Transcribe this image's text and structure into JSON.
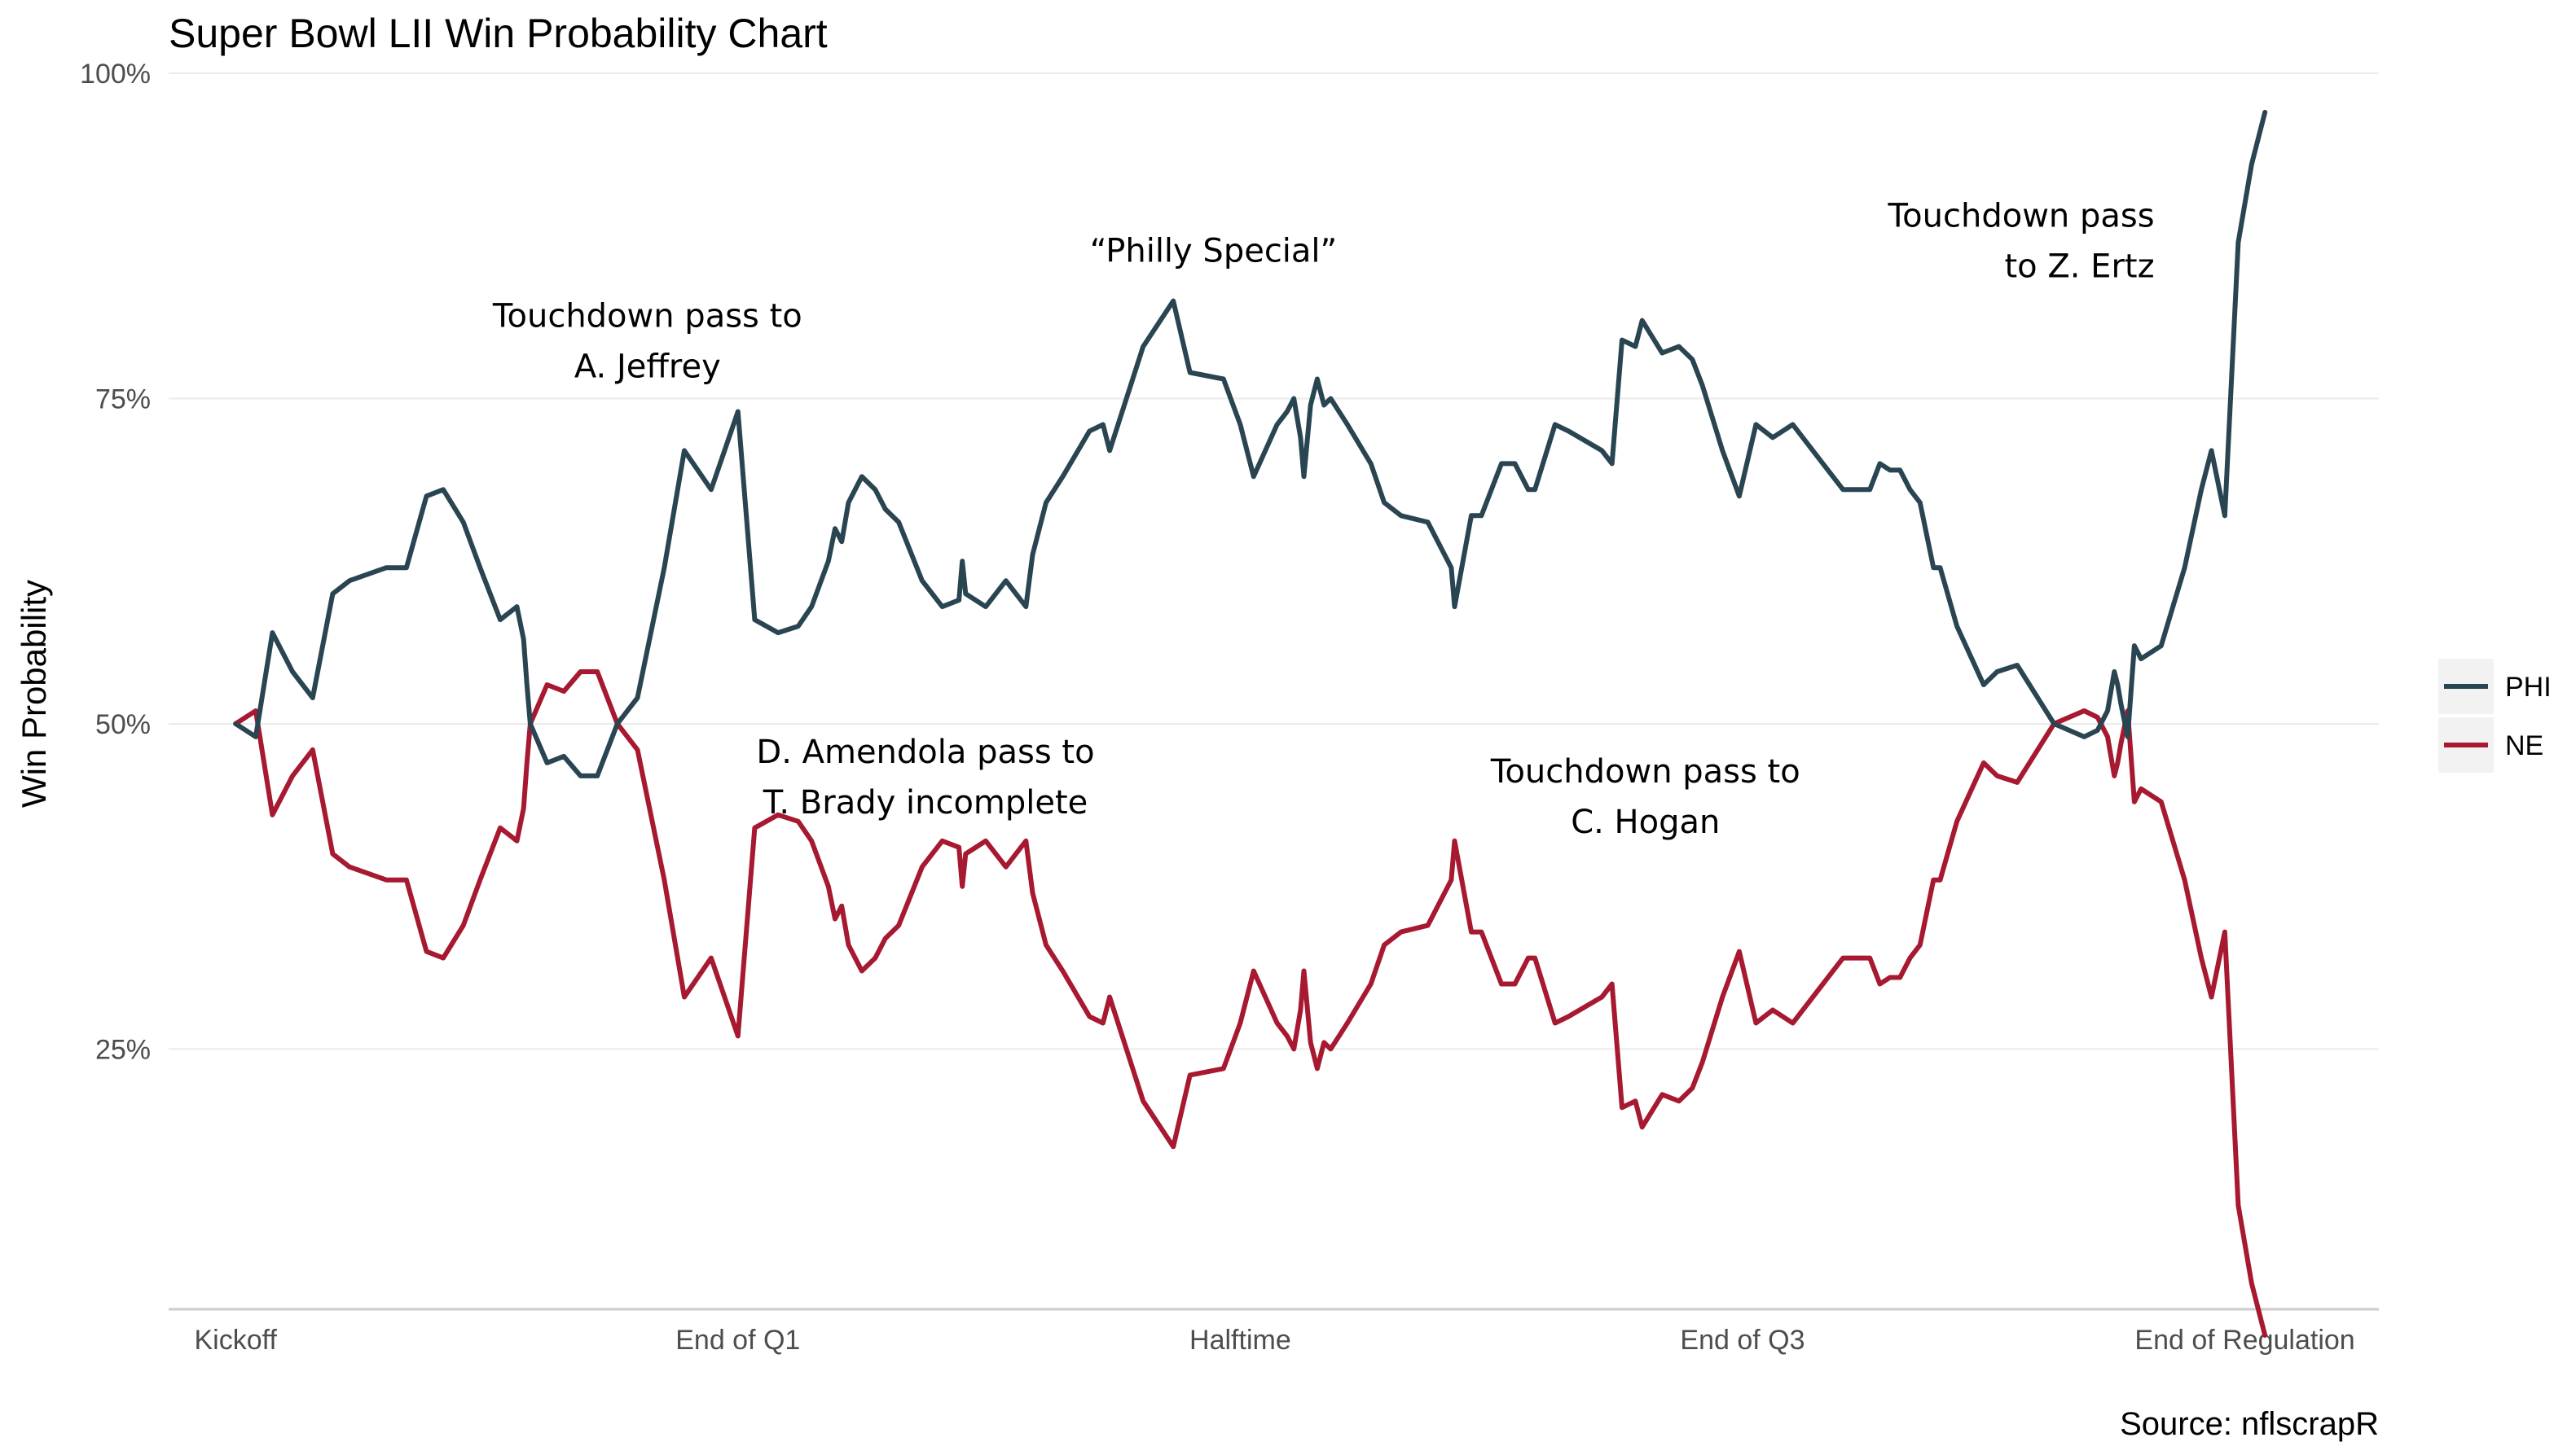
{
  "chart_data": {
    "type": "line",
    "title": "Super Bowl LII Win Probability Chart",
    "ylabel": "Win Probability",
    "xlabel": "",
    "caption": "Source: nflscrapR",
    "ylim": [
      0.05,
      1.0
    ],
    "xlim": [
      -2,
      64
    ],
    "x_ticks": [
      {
        "label": "Kickoff",
        "value": 0
      },
      {
        "label": "End of Q1",
        "value": 15
      },
      {
        "label": "Halftime",
        "value": 30
      },
      {
        "label": "End of Q3",
        "value": 45
      },
      {
        "label": "End of Regulation",
        "value": 60
      }
    ],
    "y_ticks": [
      {
        "label": "25%",
        "value": 0.25
      },
      {
        "label": "50%",
        "value": 0.5
      },
      {
        "label": "75%",
        "value": 0.75
      },
      {
        "label": "100%",
        "value": 1.0
      }
    ],
    "grid": true,
    "legend_position": "right",
    "series": [
      {
        "name": "PHI",
        "color": "#2A4552",
        "x": [
          0,
          0.6,
          1.1,
          1.7,
          2.3,
          2.9,
          3.4,
          4.5,
          5.1,
          5.7,
          6.2,
          6.8,
          7.3,
          7.9,
          8.4,
          8.6,
          8.7,
          8.8,
          9.3,
          9.8,
          10.3,
          10.8,
          11.4,
          12,
          12.8,
          13.4,
          14.2,
          14.6,
          15,
          15.5,
          16.2,
          16.8,
          17.2,
          17.7,
          17.9,
          18.1,
          18.3,
          18.7,
          19.1,
          19.4,
          19.8,
          20.5,
          21.1,
          21.6,
          21.7,
          21.8,
          22.4,
          23,
          23.6,
          23.8,
          24.2,
          24.7,
          25.5,
          25.9,
          26.1,
          27.1,
          28,
          28.5,
          29.5,
          30,
          30.4,
          31.1,
          31.4,
          31.6,
          31.8,
          31.9,
          32.1,
          32.3,
          32.5,
          32.7,
          33.2,
          33.9,
          34.3,
          34.8,
          35.6,
          36.3,
          36.4,
          36.9,
          37.2,
          37.8,
          38.2,
          38.6,
          38.8,
          39.4,
          39.8,
          40.8,
          41.1,
          41.4,
          41.8,
          42,
          42.6,
          43.1,
          43.5,
          43.8,
          44.4,
          44.9,
          45.4,
          45.9,
          46.5,
          47.4,
          48,
          48.8,
          49.1,
          49.4,
          49.7,
          50,
          50.3,
          50.7,
          50.9,
          51.4,
          52.2,
          52.6,
          53.2,
          54.3,
          55.2,
          55.6,
          55.9,
          56.1,
          56.2,
          56.3,
          56.5,
          56.7,
          56.9,
          57.5,
          58.2,
          58.7,
          59,
          59.4,
          59.8,
          60.2,
          60.4,
          60.6
        ],
        "y": [
          0.5,
          0.49,
          0.57,
          0.54,
          0.52,
          0.6,
          0.61,
          0.62,
          0.62,
          0.675,
          0.68,
          0.655,
          0.62,
          0.58,
          0.59,
          0.565,
          0.53,
          0.5,
          0.47,
          0.475,
          0.46,
          0.46,
          0.5,
          0.52,
          0.62,
          0.71,
          0.68,
          0.71,
          0.74,
          0.58,
          0.57,
          0.575,
          0.59,
          0.625,
          0.65,
          0.64,
          0.67,
          0.69,
          0.68,
          0.665,
          0.655,
          0.61,
          0.59,
          0.595,
          0.625,
          0.6,
          0.59,
          0.61,
          0.59,
          0.63,
          0.67,
          0.69,
          0.725,
          0.73,
          0.71,
          0.79,
          0.825,
          0.77,
          0.765,
          0.73,
          0.69,
          0.73,
          0.74,
          0.75,
          0.72,
          0.69,
          0.745,
          0.765,
          0.745,
          0.75,
          0.73,
          0.7,
          0.67,
          0.66,
          0.655,
          0.62,
          0.59,
          0.66,
          0.66,
          0.7,
          0.7,
          0.68,
          0.68,
          0.73,
          0.725,
          0.71,
          0.7,
          0.795,
          0.79,
          0.81,
          0.785,
          0.79,
          0.78,
          0.76,
          0.71,
          0.675,
          0.73,
          0.72,
          0.73,
          0.7,
          0.68,
          0.68,
          0.7,
          0.695,
          0.695,
          0.68,
          0.67,
          0.62,
          0.62,
          0.575,
          0.53,
          0.54,
          0.545,
          0.5,
          0.49,
          0.495,
          0.51,
          0.54,
          0.53,
          0.515,
          0.49,
          0.56,
          0.55,
          0.56,
          0.62,
          0.68,
          0.71,
          0.66,
          0.87,
          0.93,
          0.95,
          0.97
        ]
      },
      {
        "name": "NE",
        "color": "#A71930",
        "x": [
          0,
          0.6,
          1.1,
          1.7,
          2.3,
          2.9,
          3.4,
          4.5,
          5.1,
          5.7,
          6.2,
          6.8,
          7.3,
          7.9,
          8.4,
          8.6,
          8.7,
          8.8,
          9.3,
          9.8,
          10.3,
          10.8,
          11.4,
          12,
          12.8,
          13.4,
          14.2,
          14.6,
          15,
          15.5,
          16.2,
          16.8,
          17.2,
          17.7,
          17.9,
          18.1,
          18.3,
          18.7,
          19.1,
          19.4,
          19.8,
          20.5,
          21.1,
          21.6,
          21.7,
          21.8,
          22.4,
          23,
          23.6,
          23.8,
          24.2,
          24.7,
          25.5,
          25.9,
          26.1,
          27.1,
          28,
          28.5,
          29.5,
          30,
          30.4,
          31.1,
          31.4,
          31.6,
          31.8,
          31.9,
          32.1,
          32.3,
          32.5,
          32.7,
          33.2,
          33.9,
          34.3,
          34.8,
          35.6,
          36.3,
          36.4,
          36.9,
          37.2,
          37.8,
          38.2,
          38.6,
          38.8,
          39.4,
          39.8,
          40.8,
          41.1,
          41.4,
          41.8,
          42,
          42.6,
          43.1,
          43.5,
          43.8,
          44.4,
          44.9,
          45.4,
          45.9,
          46.5,
          47.4,
          48,
          48.8,
          49.1,
          49.4,
          49.7,
          50,
          50.3,
          50.7,
          50.9,
          51.4,
          52.2,
          52.6,
          53.2,
          54.3,
          55.2,
          55.6,
          55.9,
          56.1,
          56.2,
          56.3,
          56.5,
          56.7,
          56.9,
          57.5,
          58.2,
          58.7,
          59,
          59.4,
          59.8,
          60.2,
          60.4,
          60.6
        ],
        "y": [
          0.5,
          0.51,
          0.43,
          0.46,
          0.48,
          0.4,
          0.39,
          0.38,
          0.38,
          0.325,
          0.32,
          0.345,
          0.38,
          0.42,
          0.41,
          0.435,
          0.47,
          0.5,
          0.53,
          0.525,
          0.54,
          0.54,
          0.5,
          0.48,
          0.38,
          0.29,
          0.32,
          0.29,
          0.26,
          0.42,
          0.43,
          0.425,
          0.41,
          0.375,
          0.35,
          0.36,
          0.33,
          0.31,
          0.32,
          0.335,
          0.345,
          0.39,
          0.41,
          0.405,
          0.375,
          0.4,
          0.41,
          0.39,
          0.41,
          0.37,
          0.33,
          0.31,
          0.275,
          0.27,
          0.29,
          0.21,
          0.175,
          0.23,
          0.235,
          0.27,
          0.31,
          0.27,
          0.26,
          0.25,
          0.28,
          0.31,
          0.255,
          0.235,
          0.255,
          0.25,
          0.27,
          0.3,
          0.33,
          0.34,
          0.345,
          0.38,
          0.41,
          0.34,
          0.34,
          0.3,
          0.3,
          0.32,
          0.32,
          0.27,
          0.275,
          0.29,
          0.3,
          0.205,
          0.21,
          0.19,
          0.215,
          0.21,
          0.22,
          0.24,
          0.29,
          0.325,
          0.27,
          0.28,
          0.27,
          0.3,
          0.32,
          0.32,
          0.3,
          0.305,
          0.305,
          0.32,
          0.33,
          0.38,
          0.38,
          0.425,
          0.47,
          0.46,
          0.455,
          0.5,
          0.51,
          0.505,
          0.49,
          0.46,
          0.47,
          0.485,
          0.51,
          0.44,
          0.45,
          0.44,
          0.38,
          0.32,
          0.29,
          0.34,
          0.13,
          0.07,
          0.05,
          0.03
        ]
      }
    ],
    "annotations": [
      {
        "lines": [
          "Touchdown pass to",
          "A. Jeffrey"
        ],
        "x": 12.3,
        "y": 0.805
      },
      {
        "lines": [
          "“Philly Special”"
        ],
        "x": 29.2,
        "y": 0.855
      },
      {
        "lines": [
          "Touchdown pass",
          "to Z. Ertz"
        ],
        "x": 57.3,
        "y": 0.882,
        "align": "right"
      },
      {
        "lines": [
          "D. Amendola pass to",
          "T. Brady incomplete"
        ],
        "x": 20.6,
        "y": 0.47
      },
      {
        "lines": [
          "Touchdown pass to",
          "C. Hogan"
        ],
        "x": 42.1,
        "y": 0.455
      }
    ]
  }
}
